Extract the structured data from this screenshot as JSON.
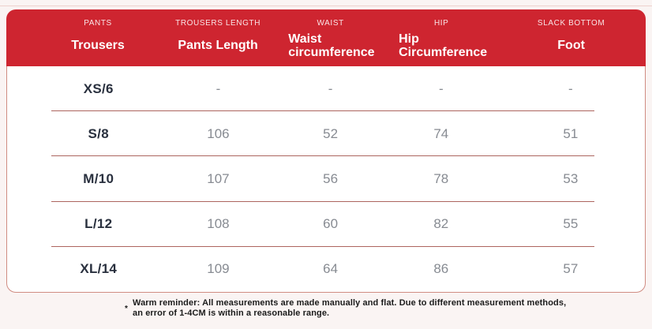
{
  "page": {
    "background_color": "#faf4f3",
    "accent_red": "#ce2530",
    "separator_color": "#ad655f"
  },
  "table": {
    "columns": [
      {
        "small_label": "PANTS",
        "big_label": "Trousers"
      },
      {
        "small_label": "TROUSERS LENGTH",
        "big_label": "Pants Length"
      },
      {
        "small_label": "WAIST",
        "big_label": "Waist circumference"
      },
      {
        "small_label": "HIP",
        "big_label": "Hip Circumference"
      },
      {
        "small_label": "SLACK BOTTOM",
        "big_label": "Foot"
      }
    ],
    "rows": [
      {
        "size": "XS/6",
        "length": "-",
        "waist": "-",
        "hip": "-",
        "foot": "-"
      },
      {
        "size": "S/8",
        "length": "106",
        "waist": "52",
        "hip": "74",
        "foot": "51"
      },
      {
        "size": "M/10",
        "length": "107",
        "waist": "56",
        "hip": "78",
        "foot": "53"
      },
      {
        "size": "L/12",
        "length": "108",
        "waist": "60",
        "hip": "82",
        "foot": "55"
      },
      {
        "size": "XL/14",
        "length": "109",
        "waist": "64",
        "hip": "86",
        "foot": "57"
      }
    ]
  },
  "note": {
    "marker": "*",
    "line1": "Warm reminder: All measurements are made manually and flat. Due to different measurement methods,",
    "line2": "an error of 1-4CM is within a reasonable range."
  }
}
